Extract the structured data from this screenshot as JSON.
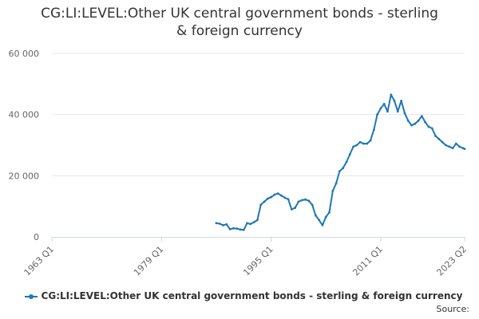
{
  "chart_data": {
    "type": "line",
    "title_lines": [
      "CG:LI:LEVEL:Other UK central government bonds - sterling",
      "& foreign currency"
    ],
    "xlabel": "",
    "ylabel": "",
    "ylim": [
      0,
      60000
    ],
    "xlim": [
      "1963 Q1",
      "2023 Q2"
    ],
    "y_ticks": [
      "0",
      "20 000",
      "40 000",
      "60 000"
    ],
    "x_ticks": [
      "1963 Q1",
      "1979 Q1",
      "1995 Q1",
      "2011 Q1",
      "2023 Q2"
    ],
    "grid": true,
    "legend_position": "bottom",
    "line_color": "#1f77b4",
    "series": [
      {
        "name": "CG:LI:LEVEL:Other UK central government bonds - sterling & foreign currency",
        "x": [
          "1987 Q1",
          "1987 Q3",
          "1988 Q1",
          "1988 Q3",
          "1989 Q1",
          "1989 Q3",
          "1990 Q1",
          "1990 Q3",
          "1991 Q1",
          "1991 Q3",
          "1992 Q1",
          "1992 Q3",
          "1993 Q1",
          "1993 Q3",
          "1994 Q1",
          "1994 Q3",
          "1995 Q1",
          "1995 Q3",
          "1996 Q1",
          "1996 Q3",
          "1997 Q1",
          "1997 Q3",
          "1998 Q1",
          "1998 Q3",
          "1999 Q1",
          "1999 Q3",
          "2000 Q1",
          "2000 Q3",
          "2001 Q1",
          "2001 Q3",
          "2002 Q1",
          "2002 Q3",
          "2003 Q1",
          "2003 Q3",
          "2004 Q1",
          "2004 Q3",
          "2005 Q1",
          "2005 Q3",
          "2006 Q1",
          "2006 Q3",
          "2007 Q1",
          "2007 Q3",
          "2008 Q1",
          "2008 Q3",
          "2009 Q1",
          "2009 Q3",
          "2010 Q1",
          "2010 Q3",
          "2011 Q1",
          "2011 Q3",
          "2012 Q1",
          "2012 Q3",
          "2013 Q1",
          "2013 Q3",
          "2014 Q1",
          "2014 Q3",
          "2015 Q1",
          "2015 Q3",
          "2016 Q1",
          "2016 Q3",
          "2017 Q1",
          "2017 Q3",
          "2018 Q1",
          "2018 Q3",
          "2019 Q1",
          "2019 Q3",
          "2020 Q1",
          "2020 Q3",
          "2021 Q1",
          "2021 Q3",
          "2022 Q1",
          "2022 Q3",
          "2023 Q1",
          "2023 Q2"
        ],
        "values": [
          4500,
          4300,
          3800,
          4100,
          2500,
          2800,
          2700,
          2400,
          2300,
          4500,
          4200,
          4800,
          5500,
          10500,
          11500,
          12500,
          13000,
          13800,
          14200,
          13500,
          12800,
          12300,
          9000,
          9500,
          11500,
          12000,
          12200,
          11800,
          10500,
          7000,
          5500,
          3800,
          6500,
          8000,
          15000,
          17500,
          21500,
          22500,
          24500,
          27000,
          29500,
          30000,
          31000,
          30500,
          30500,
          31500,
          35000,
          40000,
          42000,
          43500,
          41000,
          46500,
          44500,
          41000,
          44500,
          40500,
          38000,
          36500,
          37000,
          38000,
          39500,
          37500,
          36000,
          35500,
          33000,
          32000,
          31000,
          30000,
          29500,
          29000,
          30500,
          29500,
          29000,
          28800
        ]
      }
    ]
  },
  "legend": {
    "label": "CG:LI:LEVEL:Other UK central government bonds - sterling & foreign currency"
  },
  "footer": {
    "source_label": "Source:"
  }
}
